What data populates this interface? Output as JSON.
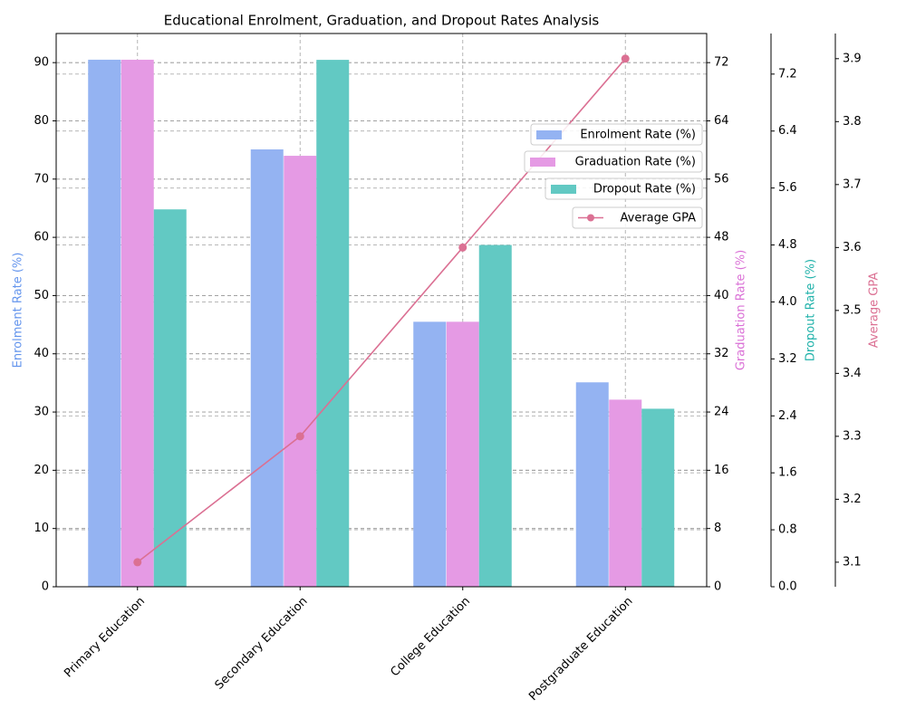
{
  "chart_data": {
    "type": "bar",
    "title": "Educational Enrolment, Graduation, and Dropout Rates Analysis",
    "categories": [
      "Primary Education",
      "Secondary Education",
      "College Education",
      "Postgraduate Education"
    ],
    "ylabel": "Enrolment Rate (%)",
    "ylim": [
      0,
      95
    ],
    "yticks": [
      0,
      10,
      20,
      30,
      40,
      50,
      60,
      70,
      80,
      90
    ],
    "y2label": "Graduation Rate (%)",
    "y2lim": [
      0,
      76
    ],
    "y2ticks": [
      0,
      8,
      16,
      24,
      32,
      40,
      48,
      56,
      64,
      72
    ],
    "y3label": "Dropout Rate (%)",
    "y3lim": [
      0,
      7.77
    ],
    "y3ticks": [
      {
        "value": 0,
        "label": "0.0"
      },
      0.8,
      1.6,
      2.4,
      3.2,
      {
        "value": 4,
        "label": "4.0"
      },
      4.8,
      5.6,
      6.4,
      7.2
    ],
    "y4label": "Average GPA",
    "y4lim": [
      3.061,
      3.94
    ],
    "y4ticks": [
      3.1,
      3.2,
      3.3,
      3.4,
      3.5,
      3.6,
      3.7,
      3.8,
      3.9
    ],
    "grid": true,
    "series": [
      {
        "name": "Enrolment Rate (%)",
        "type": "bar",
        "axis": "y",
        "color": "#94b3f2",
        "values": [
          90.5,
          75.1,
          45.5,
          35.1
        ]
      },
      {
        "name": "Graduation Rate (%)",
        "type": "bar",
        "axis": "y2",
        "color": "#e59ae4",
        "values": [
          72.4,
          59.2,
          36.4,
          25.7
        ]
      },
      {
        "name": "Dropout Rate (%)",
        "type": "bar",
        "axis": "y3",
        "color": "#62c9c3",
        "values": [
          5.3,
          7.4,
          4.8,
          2.5
        ]
      },
      {
        "name": "Average GPA",
        "type": "line",
        "axis": "y4",
        "color": "#db7093",
        "values": [
          3.1,
          3.3,
          3.6,
          3.9
        ]
      }
    ]
  }
}
